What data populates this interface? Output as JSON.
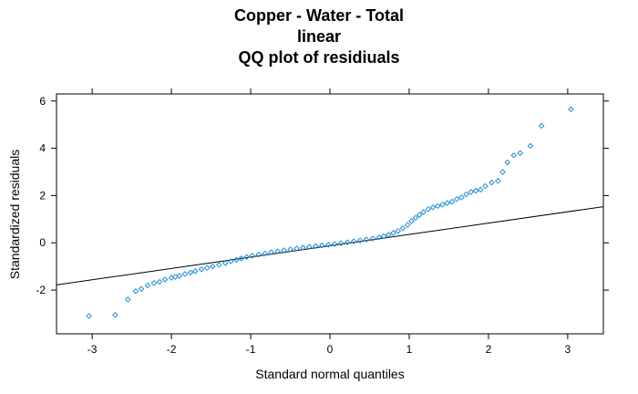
{
  "chart_data": {
    "type": "scatter",
    "title": [
      "Copper - Water - Total",
      "linear",
      "QQ plot of residiuals"
    ],
    "xlabel": "Standard normal quantiles",
    "ylabel": "Standardized residuals",
    "xlim": [
      -3.45,
      3.45
    ],
    "ylim": [
      -3.85,
      6.3
    ],
    "xticks": [
      -3,
      -2,
      -1,
      0,
      1,
      2,
      3
    ],
    "yticks": [
      -2,
      0,
      2,
      4,
      6
    ],
    "grid": false,
    "colors": {
      "points": "#1e90d6",
      "reference_line": "#000000"
    },
    "reference_line": {
      "x": [
        -3.45,
        3.45
      ],
      "y": [
        -1.78,
        1.53
      ]
    },
    "points": {
      "x": [
        -3.04,
        -2.71,
        -2.55,
        -2.45,
        -2.38,
        -2.3,
        -2.22,
        -2.15,
        -2.08,
        -2.0,
        -1.95,
        -1.9,
        -1.83,
        -1.76,
        -1.7,
        -1.62,
        -1.55,
        -1.48,
        -1.4,
        -1.32,
        -1.25,
        -1.18,
        -1.12,
        -1.05,
        -0.98,
        -0.9,
        -0.82,
        -0.74,
        -0.66,
        -0.58,
        -0.5,
        -0.42,
        -0.34,
        -0.26,
        -0.18,
        -0.1,
        -0.02,
        0.06,
        0.14,
        0.22,
        0.3,
        0.38,
        0.46,
        0.54,
        0.62,
        0.68,
        0.74,
        0.8,
        0.86,
        0.92,
        0.98,
        1.03,
        1.08,
        1.13,
        1.18,
        1.24,
        1.3,
        1.36,
        1.42,
        1.48,
        1.54,
        1.6,
        1.66,
        1.72,
        1.78,
        1.84,
        1.9,
        1.96,
        2.04,
        2.12,
        2.18,
        2.24,
        2.32,
        2.4,
        2.53,
        2.67,
        3.04
      ],
      "y": [
        -3.1,
        -3.05,
        -2.4,
        -2.05,
        -1.95,
        -1.8,
        -1.7,
        -1.65,
        -1.55,
        -1.48,
        -1.44,
        -1.4,
        -1.32,
        -1.26,
        -1.2,
        -1.12,
        -1.06,
        -1.0,
        -0.93,
        -0.86,
        -0.78,
        -0.72,
        -0.66,
        -0.6,
        -0.55,
        -0.5,
        -0.45,
        -0.4,
        -0.36,
        -0.32,
        -0.28,
        -0.24,
        -0.2,
        -0.17,
        -0.14,
        -0.11,
        -0.08,
        -0.05,
        -0.02,
        0.02,
        0.06,
        0.1,
        0.14,
        0.18,
        0.23,
        0.28,
        0.34,
        0.42,
        0.5,
        0.62,
        0.76,
        0.92,
        1.06,
        1.18,
        1.3,
        1.42,
        1.5,
        1.56,
        1.62,
        1.68,
        1.74,
        1.85,
        1.92,
        2.05,
        2.15,
        2.2,
        2.25,
        2.4,
        2.55,
        2.62,
        3.0,
        3.4,
        3.7,
        3.8,
        4.1,
        4.95,
        5.65
      ]
    }
  }
}
